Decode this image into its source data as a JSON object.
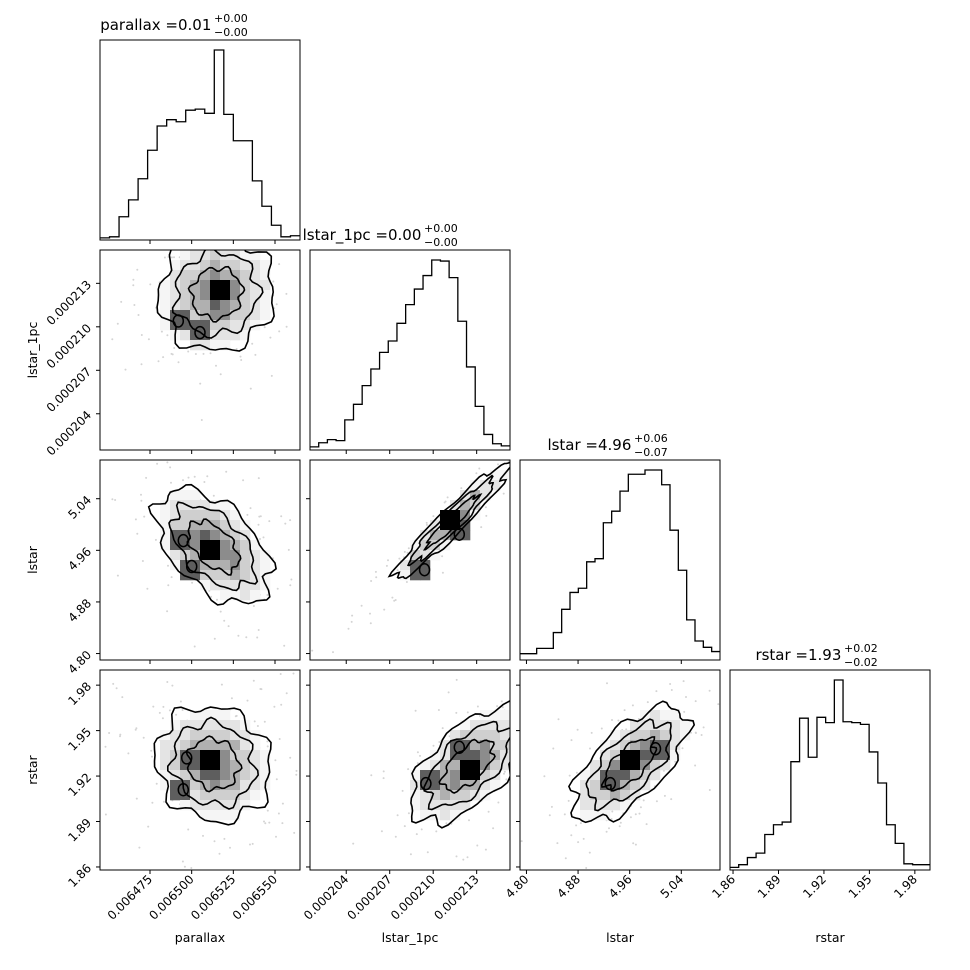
{
  "chart_data": {
    "type": "corner",
    "parameters": [
      {
        "name": "parallax",
        "range": [
          0.006445,
          0.006565
        ],
        "ticks": [
          0.006475,
          0.0065,
          0.006525,
          0.00655
        ],
        "tick_labels": [
          "0.006475",
          "0.006500",
          "0.006525",
          "0.006550"
        ],
        "title": {
          "prefix": "parallax = ",
          "value": "0.01",
          "plus": "+0.00",
          "minus": "−0.00"
        },
        "histogram": [
          2,
          3,
          22,
          38,
          58,
          85,
          108,
          114,
          112,
          123,
          124,
          120,
          180,
          119,
          94,
          94,
          56,
          32,
          14,
          3,
          4
        ]
      },
      {
        "name": "lstar_1pc",
        "range": [
          0.0002015,
          0.0002153
        ],
        "ticks": [
          0.000204,
          0.000207,
          0.00021,
          0.000213
        ],
        "tick_labels": [
          "0.000204",
          "0.000207",
          "0.000210",
          "0.000213"
        ],
        "title": {
          "prefix": "lstar_1pc = ",
          "value": "0.00",
          "plus": "+0.00",
          "minus": "−0.00"
        },
        "histogram": [
          3,
          7,
          10,
          9,
          29,
          44,
          62,
          78,
          94,
          105,
          122,
          140,
          155,
          168,
          183,
          182,
          166,
          124,
          80,
          42,
          15,
          6,
          4
        ]
      },
      {
        "name": "lstar",
        "range": [
          4.79,
          5.1
        ],
        "ticks": [
          4.8,
          4.88,
          4.96,
          5.04
        ],
        "tick_labels": [
          "4.80",
          "4.88",
          "4.96",
          "5.04"
        ],
        "title": {
          "prefix": "lstar = ",
          "value": "4.96",
          "plus": "+0.06",
          "minus": "−0.07"
        },
        "histogram": [
          6,
          6,
          11,
          11,
          26,
          48,
          64,
          68,
          93,
          96,
          130,
          141,
          160,
          176,
          176,
          180,
          180,
          166,
          123,
          85,
          38,
          18,
          12,
          8
        ]
      },
      {
        "name": "rstar",
        "range": [
          1.858,
          1.99
        ],
        "ticks": [
          1.86,
          1.89,
          1.92,
          1.95,
          1.98
        ],
        "tick_labels": [
          "1.86",
          "1.89",
          "1.92",
          "1.95",
          "1.98"
        ],
        "title": {
          "prefix": "rstar = ",
          "value": "1.93",
          "plus": "+0.02",
          "minus": "−0.02"
        },
        "histogram": [
          3,
          6,
          14,
          19,
          40,
          51,
          54,
          122,
          171,
          127,
          172,
          166,
          214,
          167,
          166,
          164,
          133,
          98,
          51,
          30,
          7,
          6,
          6
        ]
      }
    ],
    "pairs": [
      {
        "row": 1,
        "col": 0,
        "correlation": 0.05,
        "modes": [
          [
            0.006515,
            0.0002123,
            5
          ],
          [
            0.006492,
            0.0002104,
            3
          ],
          [
            0.006505,
            0.0002096,
            3
          ]
        ]
      },
      {
        "row": 2,
        "col": 0,
        "correlation": -0.5,
        "modes": [
          [
            0.006513,
            4.966,
            5
          ],
          [
            0.006495,
            4.975,
            3
          ],
          [
            0.0065,
            4.935,
            3
          ]
        ]
      },
      {
        "row": 2,
        "col": 1,
        "correlation": 0.95,
        "modes": [
          [
            0.0002113,
            5.005,
            5
          ],
          [
            0.0002118,
            4.985,
            3
          ],
          [
            0.0002094,
            4.93,
            3
          ]
        ]
      },
      {
        "row": 3,
        "col": 0,
        "correlation": -0.1,
        "modes": [
          [
            0.006513,
            1.928,
            6
          ],
          [
            0.006497,
            1.932,
            3
          ],
          [
            0.006495,
            1.911,
            3
          ]
        ]
      },
      {
        "row": 3,
        "col": 1,
        "correlation": 0.6,
        "modes": [
          [
            0.0002124,
            1.927,
            5
          ],
          [
            0.0002095,
            1.915,
            3
          ],
          [
            0.0002118,
            1.939,
            3
          ]
        ]
      },
      {
        "row": 3,
        "col": 2,
        "correlation": 0.65,
        "modes": [
          [
            4.96,
            1.928,
            6
          ],
          [
            4.93,
            1.915,
            3
          ],
          [
            5.0,
            1.938,
            3
          ]
        ]
      }
    ]
  }
}
